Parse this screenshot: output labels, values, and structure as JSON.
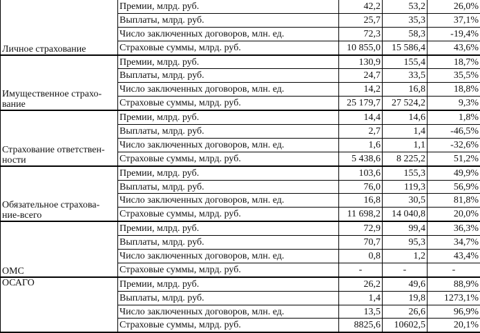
{
  "groups": [
    {
      "label": "Личное страхование",
      "rows": [
        [
          "Премии, млрд. руб.",
          "42,2",
          "53,2",
          "26,0%"
        ],
        [
          "Выплаты, млрд. руб.",
          "25,7",
          "35,3",
          "37,1%"
        ],
        [
          "Число заключенных договоров, млн. ед.",
          "72,3",
          "58,3",
          "-19,4%"
        ],
        [
          "Страховые суммы, млрд. руб.",
          "10 855,0",
          "15 586,4",
          "43,6%"
        ]
      ]
    },
    {
      "label": "Имущественное страхо-вание",
      "rows": [
        [
          "Премии, млрд. руб.",
          "130,9",
          "155,4",
          "18,7%"
        ],
        [
          "Выплаты, млрд. руб.",
          "24,7",
          "33,5",
          "35,5%"
        ],
        [
          "Число заключенных договоров, млн. ед.",
          "14,2",
          "16,8",
          "18,8%"
        ],
        [
          "Страховые суммы, млрд. руб.",
          "25 179,7",
          "27 524,2",
          "9,3%"
        ]
      ]
    },
    {
      "label": "Страхование ответствен-ности",
      "rows": [
        [
          "Премии, млрд. руб.",
          "14,4",
          "14,6",
          "1,8%"
        ],
        [
          "Выплаты, млрд. руб.",
          "2,7",
          "1,4",
          "-46,5%"
        ],
        [
          "Число заключенных договоров, млн. ед.",
          "1,6",
          "1,1",
          "-32,6%"
        ],
        [
          "Страховые суммы, млрд. руб.",
          "5 438,6",
          "8 225,2",
          "51,2%"
        ]
      ]
    },
    {
      "label": "Обязательное страхова-ние-всего",
      "rows": [
        [
          "Премии, млрд. руб.",
          "103,6",
          "155,3",
          "49,9%"
        ],
        [
          "Выплаты, млрд. руб.",
          "76,0",
          "119,3",
          "56,9%"
        ],
        [
          "Число заключенных договоров, млн. ед.",
          "16,8",
          "30,5",
          "81,8%"
        ],
        [
          "Страховые суммы, млрд. руб.",
          "11 698,2",
          "14 040,8",
          "20,0%"
        ]
      ]
    },
    {
      "label": "ОМС",
      "rows": [
        [
          "Премии, млрд. руб.",
          "72,9",
          "99,4",
          "36,3%"
        ],
        [
          "Выплаты, млрд. руб.",
          "70,7",
          "95,3",
          "34,7%"
        ],
        [
          "Число заключенных договоров, млн. ед.",
          "0,8",
          "1,2",
          "43,4%"
        ],
        [
          "Страховые суммы, млрд. руб.",
          "-",
          "-",
          "-"
        ]
      ]
    },
    {
      "label": "ОСАГО",
      "rows": [
        [
          "Премии, млрд. руб.",
          "26,2",
          "49,6",
          "88,9%"
        ],
        [
          "Выплаты, млрд. руб.",
          "1,4",
          "19,8",
          "1273,1%"
        ],
        [
          "Число заключенных договоров, млн. ед.",
          "13,5",
          "26,6",
          "96,9%"
        ],
        [
          "Страховые суммы, млрд. руб.",
          "8825,6",
          "10602,5",
          "20,1%"
        ]
      ]
    }
  ]
}
